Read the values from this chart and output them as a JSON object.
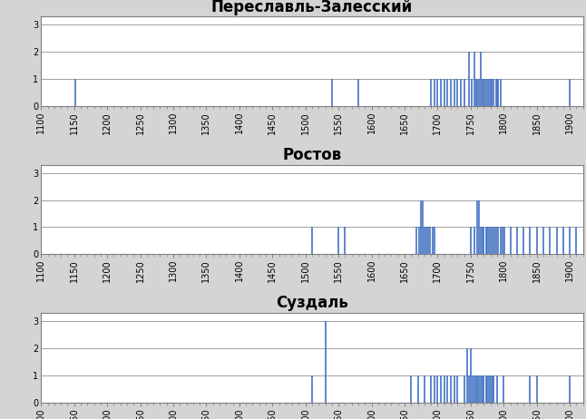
{
  "subplots": [
    {
      "title": "Переславль-Залесский",
      "events": [
        [
          1152,
          1
        ],
        [
          1540,
          1
        ],
        [
          1580,
          1
        ],
        [
          1690,
          1
        ],
        [
          1695,
          1
        ],
        [
          1700,
          1
        ],
        [
          1705,
          1
        ],
        [
          1710,
          1
        ],
        [
          1715,
          1
        ],
        [
          1720,
          1
        ],
        [
          1725,
          1
        ],
        [
          1730,
          1
        ],
        [
          1735,
          1
        ],
        [
          1740,
          1
        ],
        [
          1748,
          2
        ],
        [
          1752,
          1
        ],
        [
          1755,
          2
        ],
        [
          1758,
          1
        ],
        [
          1760,
          1
        ],
        [
          1762,
          1
        ],
        [
          1765,
          2
        ],
        [
          1768,
          1
        ],
        [
          1770,
          1
        ],
        [
          1772,
          1
        ],
        [
          1775,
          1
        ],
        [
          1778,
          1
        ],
        [
          1780,
          1
        ],
        [
          1782,
          1
        ],
        [
          1785,
          1
        ],
        [
          1788,
          1
        ],
        [
          1790,
          1
        ],
        [
          1792,
          1
        ],
        [
          1795,
          1
        ],
        [
          1900,
          1
        ]
      ]
    },
    {
      "title": "Ростов",
      "events": [
        [
          1510,
          1
        ],
        [
          1550,
          1
        ],
        [
          1560,
          1
        ],
        [
          1668,
          1
        ],
        [
          1672,
          1
        ],
        [
          1675,
          2
        ],
        [
          1678,
          2
        ],
        [
          1680,
          1
        ],
        [
          1683,
          1
        ],
        [
          1686,
          1
        ],
        [
          1689,
          1
        ],
        [
          1692,
          1
        ],
        [
          1695,
          1
        ],
        [
          1750,
          1
        ],
        [
          1755,
          1
        ],
        [
          1760,
          2
        ],
        [
          1762,
          2
        ],
        [
          1765,
          1
        ],
        [
          1768,
          1
        ],
        [
          1770,
          1
        ],
        [
          1773,
          1
        ],
        [
          1775,
          1
        ],
        [
          1778,
          1
        ],
        [
          1780,
          1
        ],
        [
          1783,
          1
        ],
        [
          1786,
          1
        ],
        [
          1789,
          1
        ],
        [
          1792,
          1
        ],
        [
          1795,
          1
        ],
        [
          1798,
          1
        ],
        [
          1801,
          1
        ],
        [
          1810,
          1
        ],
        [
          1820,
          1
        ],
        [
          1830,
          1
        ],
        [
          1840,
          1
        ],
        [
          1850,
          1
        ],
        [
          1860,
          1
        ],
        [
          1870,
          1
        ],
        [
          1880,
          1
        ],
        [
          1890,
          1
        ],
        [
          1900,
          1
        ],
        [
          1910,
          1
        ]
      ]
    },
    {
      "title": "Суздаль",
      "events": [
        [
          1510,
          1
        ],
        [
          1530,
          3
        ],
        [
          1660,
          1
        ],
        [
          1670,
          1
        ],
        [
          1680,
          1
        ],
        [
          1690,
          1
        ],
        [
          1695,
          1
        ],
        [
          1700,
          1
        ],
        [
          1705,
          1
        ],
        [
          1710,
          1
        ],
        [
          1715,
          1
        ],
        [
          1720,
          1
        ],
        [
          1725,
          1
        ],
        [
          1730,
          1
        ],
        [
          1740,
          1
        ],
        [
          1745,
          2
        ],
        [
          1748,
          1
        ],
        [
          1750,
          2
        ],
        [
          1753,
          1
        ],
        [
          1755,
          1
        ],
        [
          1758,
          1
        ],
        [
          1760,
          1
        ],
        [
          1763,
          1
        ],
        [
          1765,
          1
        ],
        [
          1768,
          1
        ],
        [
          1770,
          1
        ],
        [
          1773,
          1
        ],
        [
          1775,
          1
        ],
        [
          1778,
          1
        ],
        [
          1780,
          1
        ],
        [
          1783,
          1
        ],
        [
          1785,
          1
        ],
        [
          1790,
          1
        ],
        [
          1800,
          1
        ],
        [
          1840,
          1
        ],
        [
          1850,
          1
        ],
        [
          1900,
          1
        ]
      ]
    }
  ],
  "xlim": [
    1100,
    1920
  ],
  "ylim": [
    0,
    3.3
  ],
  "xticks": [
    1100,
    1150,
    1200,
    1250,
    1300,
    1350,
    1400,
    1450,
    1500,
    1550,
    1600,
    1650,
    1700,
    1750,
    1800,
    1850,
    1900
  ],
  "yticks": [
    0,
    1,
    2,
    3
  ],
  "bar_color": "#4472C4",
  "bar_width": 2.5,
  "background_color": "#FFFFFF",
  "outer_background": "#D4D4D4",
  "grid_color": "#A0A0A0",
  "spine_color": "#808080",
  "title_fontsize": 12,
  "tick_fontsize": 7
}
